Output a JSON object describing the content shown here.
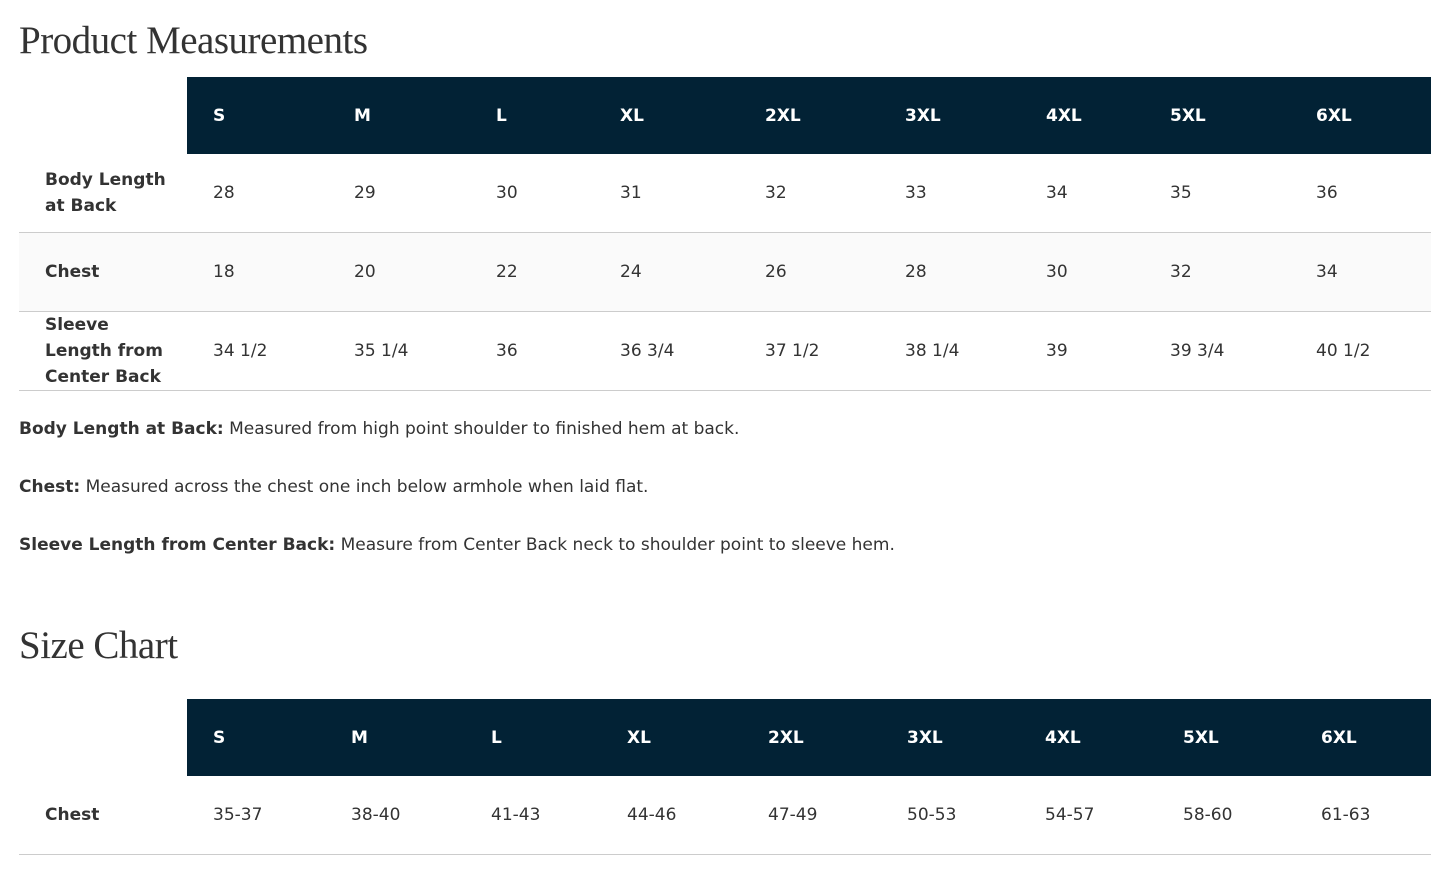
{
  "measurements": {
    "title": "Product Measurements",
    "headers": [
      "S",
      "M",
      "L",
      "XL",
      "2XL",
      "3XL",
      "4XL",
      "5XL",
      "6XL"
    ],
    "rows": [
      [
        "Body Length at Back",
        "28",
        "29",
        "30",
        "31",
        "32",
        "33",
        "34",
        "35",
        "36"
      ],
      [
        "Chest",
        "18",
        "20",
        "22",
        "24",
        "26",
        "28",
        "30",
        "32",
        "34"
      ],
      [
        "Sleeve Length from Center Back",
        "34 1/2",
        "35 1/4",
        "36",
        "36 3/4",
        "37 1/2",
        "38 1/4",
        "39",
        "39 3/4",
        "40 1/2"
      ]
    ]
  },
  "notes": [
    {
      "term": "Body Length at Back:",
      "text": "Measured from high point shoulder to finished hem at back."
    },
    {
      "term": "Chest:",
      "text": "Measured across the chest one inch below armhole when laid flat."
    },
    {
      "term": "Sleeve Length from Center Back:",
      "text": "Measure from Center Back neck to shoulder point to sleeve hem."
    }
  ],
  "size_chart": {
    "title": "Size Chart",
    "headers": [
      "S",
      "M",
      "L",
      "XL",
      "2XL",
      "3XL",
      "4XL",
      "5XL",
      "6XL"
    ],
    "rows": [
      [
        "Chest",
        "35-37",
        "38-40",
        "41-43",
        "44-46",
        "47-49",
        "50-53",
        "54-57",
        "58-60",
        "61-63"
      ]
    ]
  }
}
